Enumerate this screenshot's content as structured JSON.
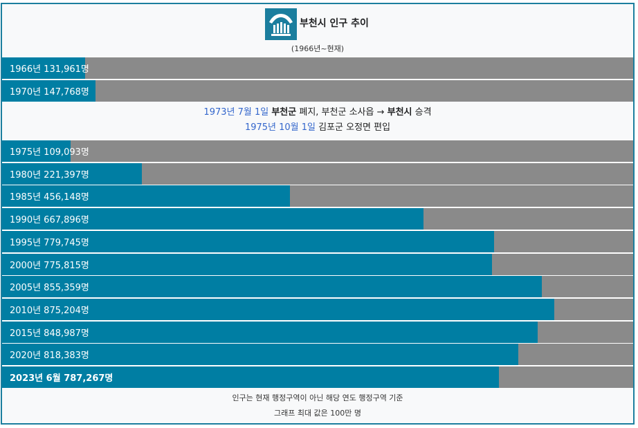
{
  "title": "부천시 인구 추이",
  "subtitle": "(1966년~현재)",
  "colors": {
    "bar": "#007ea3",
    "track": "#8a8a8a",
    "border": "#1b7e9e",
    "link": "#3366cc"
  },
  "icon": "bucheon-city-emblem",
  "note": {
    "line1": {
      "date": "1973년 7월 1일",
      "b1": "부천군",
      "t1": " 폐지, 부천군 소사읍 → ",
      "b2": "부천시",
      "t2": " 승격"
    },
    "line2": {
      "date": "1975년 10월 1일",
      "t1": " 김포군 오정면 편입"
    }
  },
  "footer": {
    "line1": "인구는 현재 행정구역이 아닌 해당 연도 행정구역 기준",
    "line2": "그래프 최대 값은 100만 명"
  },
  "chart_data": {
    "type": "bar",
    "orientation": "horizontal",
    "max": 1000000,
    "rows": [
      {
        "label": "1966년 131,961명",
        "value": 131961
      },
      {
        "label": "1970년 147,768명",
        "value": 147768
      },
      {
        "label": "1975년 109,093명",
        "value": 109093
      },
      {
        "label": "1980년 221,397명",
        "value": 221397
      },
      {
        "label": "1985년 456,148명",
        "value": 456148
      },
      {
        "label": "1990년 667,896명",
        "value": 667896
      },
      {
        "label": "1995년 779,745명",
        "value": 779745
      },
      {
        "label": "2000년 775,815명",
        "value": 775815
      },
      {
        "label": "2005년 855,359명",
        "value": 855359
      },
      {
        "label": "2010년 875,204명",
        "value": 875204
      },
      {
        "label": "2015년 848,987명",
        "value": 848987
      },
      {
        "label": "2020년 818,383명",
        "value": 818383
      },
      {
        "label": "2023년 6월 787,267명",
        "value": 787267,
        "bold": true
      }
    ]
  }
}
